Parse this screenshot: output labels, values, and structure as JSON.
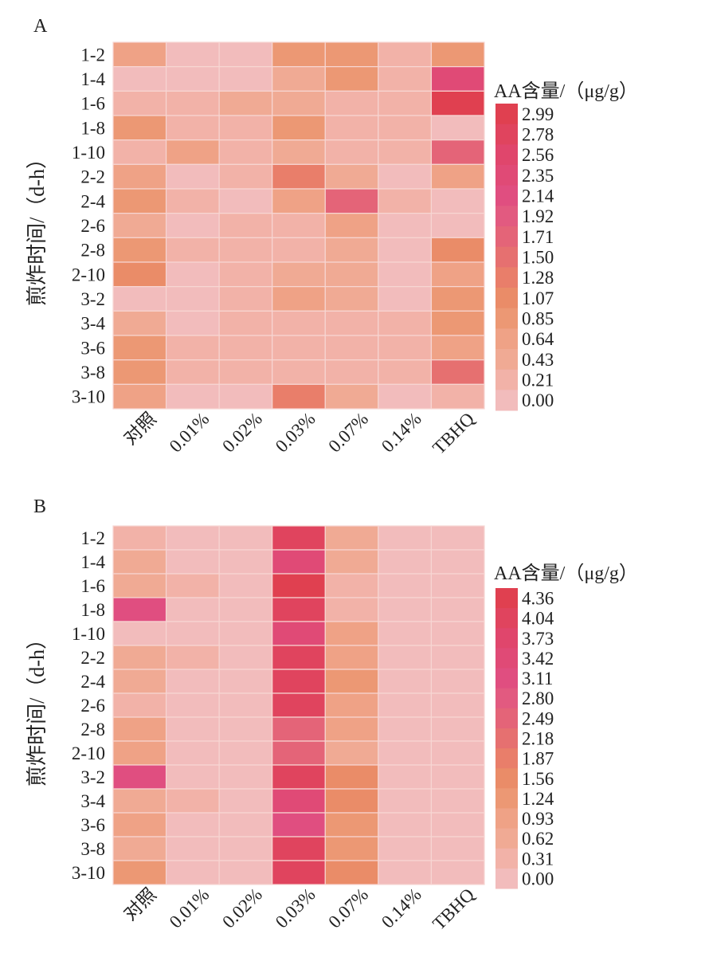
{
  "chart_data": [
    {
      "type": "heatmap",
      "panel_label": "A",
      "ylabel": "煎炸时间/（d-h）",
      "colorbar_title": "AA含量/（μg/g）",
      "colorbar_ticks": [
        "2.99",
        "2.78",
        "2.56",
        "2.35",
        "2.14",
        "1.92",
        "1.71",
        "1.50",
        "1.28",
        "1.07",
        "0.85",
        "0.64",
        "0.43",
        "0.21",
        "0.00"
      ],
      "range": [
        0,
        2.99
      ],
      "rows": [
        "1-2",
        "1-4",
        "1-6",
        "1-8",
        "1-10",
        "2-2",
        "2-4",
        "2-6",
        "2-8",
        "2-10",
        "3-2",
        "3-4",
        "3-6",
        "3-8",
        "3-10"
      ],
      "columns": [
        "对照",
        "0.01%",
        "0.02%",
        "0.03%",
        "0.07%",
        "0.14%",
        "TBHQ"
      ],
      "values": [
        [
          0.55,
          0.05,
          0.05,
          0.85,
          0.85,
          0.25,
          0.85
        ],
        [
          0.02,
          0.05,
          0.05,
          0.5,
          0.9,
          0.25,
          2.3
        ],
        [
          0.3,
          0.3,
          0.5,
          0.5,
          0.25,
          0.25,
          2.9
        ],
        [
          0.85,
          0.3,
          0.3,
          0.85,
          0.25,
          0.25,
          0.05
        ],
        [
          0.3,
          0.55,
          0.3,
          0.5,
          0.25,
          0.25,
          1.75
        ],
        [
          0.6,
          0.05,
          0.3,
          1.3,
          0.5,
          0.1,
          0.6
        ],
        [
          0.85,
          0.3,
          0.05,
          0.6,
          1.75,
          0.25,
          0.05
        ],
        [
          0.5,
          0.05,
          0.3,
          0.3,
          0.6,
          0.05,
          0.05
        ],
        [
          0.85,
          0.3,
          0.3,
          0.3,
          0.5,
          0.05,
          1.0
        ],
        [
          1.05,
          0.05,
          0.3,
          0.5,
          0.5,
          0.05,
          0.55
        ],
        [
          0.05,
          0.05,
          0.3,
          0.65,
          0.5,
          0.05,
          0.85
        ],
        [
          0.5,
          0.05,
          0.3,
          0.25,
          0.25,
          0.25,
          0.85
        ],
        [
          0.85,
          0.3,
          0.3,
          0.25,
          0.25,
          0.25,
          0.7
        ],
        [
          0.85,
          0.3,
          0.3,
          0.25,
          0.25,
          0.25,
          1.55
        ],
        [
          0.6,
          0.05,
          0.05,
          1.3,
          0.5,
          0.05,
          0.3
        ]
      ]
    },
    {
      "type": "heatmap",
      "panel_label": "B",
      "ylabel": "煎炸时间/（d-h）",
      "colorbar_title": "AA含量/（μg/g）",
      "colorbar_ticks": [
        "4.36",
        "4.04",
        "3.73",
        "3.42",
        "3.11",
        "2.80",
        "2.49",
        "2.18",
        "1.87",
        "1.56",
        "1.24",
        "0.93",
        "0.62",
        "0.31",
        "0.00"
      ],
      "range": [
        0,
        4.36
      ],
      "rows": [
        "1-2",
        "1-4",
        "1-6",
        "1-8",
        "1-10",
        "2-2",
        "2-4",
        "2-6",
        "2-8",
        "2-10",
        "3-2",
        "3-4",
        "3-6",
        "3-8",
        "3-10"
      ],
      "columns": [
        "对照",
        "0.01%",
        "0.02%",
        "0.03%",
        "0.07%",
        "0.14%",
        "TBHQ"
      ],
      "values": [
        [
          0.4,
          0.1,
          0.1,
          3.9,
          0.5,
          0.1,
          0.1
        ],
        [
          0.7,
          0.1,
          0.1,
          3.4,
          0.5,
          0.1,
          0.1
        ],
        [
          0.7,
          0.4,
          0.1,
          4.3,
          0.4,
          0.1,
          0.1
        ],
        [
          3.1,
          0.1,
          0.1,
          3.9,
          0.4,
          0.1,
          0.1
        ],
        [
          0.1,
          0.1,
          0.1,
          3.4,
          1.0,
          0.1,
          0.1
        ],
        [
          0.7,
          0.4,
          0.1,
          3.9,
          0.8,
          0.1,
          0.1
        ],
        [
          0.7,
          0.1,
          0.1,
          3.9,
          1.3,
          0.1,
          0.1
        ],
        [
          0.4,
          0.1,
          0.1,
          3.9,
          0.8,
          0.1,
          0.1
        ],
        [
          0.9,
          0.1,
          0.1,
          2.6,
          0.8,
          0.1,
          0.1
        ],
        [
          0.9,
          0.1,
          0.1,
          2.6,
          0.5,
          0.1,
          0.1
        ],
        [
          3.1,
          0.1,
          0.1,
          3.9,
          1.5,
          0.1,
          0.1
        ],
        [
          0.7,
          0.4,
          0.1,
          3.5,
          1.5,
          0.1,
          0.1
        ],
        [
          0.9,
          0.1,
          0.1,
          3.1,
          1.1,
          0.1,
          0.1
        ],
        [
          0.7,
          0.1,
          0.1,
          3.9,
          1.3,
          0.1,
          0.1
        ],
        [
          1.3,
          0.1,
          0.1,
          4.1,
          1.5,
          0.1,
          0.1
        ]
      ]
    }
  ],
  "colors": [
    "#f2bcbc",
    "#f2b2a8",
    "#f0aa94",
    "#efa286",
    "#ec9874",
    "#ea8c68",
    "#e97e6a",
    "#e67070",
    "#e46478",
    "#e25a80",
    "#e04e80",
    "#e04a76",
    "#e0466c",
    "#e0445e",
    "#e04050"
  ]
}
